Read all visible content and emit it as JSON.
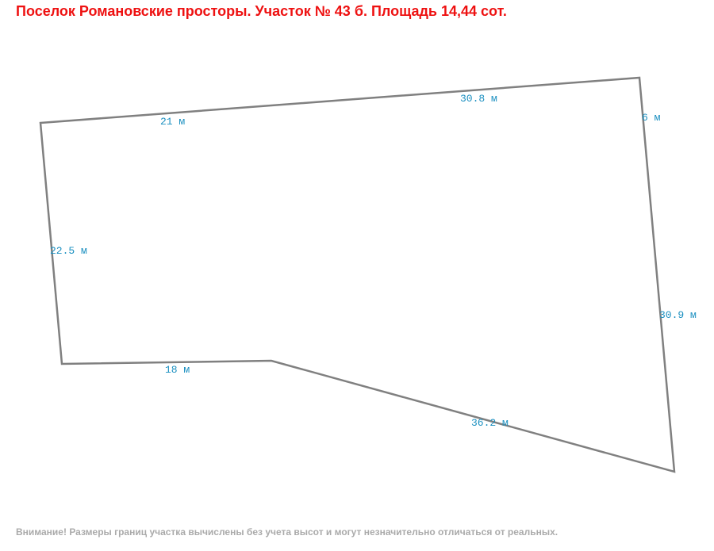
{
  "header": {
    "title": "Поселок Романовские просторы. Участок № 43 б. Площадь 14,44 сот."
  },
  "plot": {
    "edges": [
      {
        "label": "21 м"
      },
      {
        "label": "30.8 м"
      },
      {
        "label": "6 м"
      },
      {
        "label": "22.5 м"
      },
      {
        "label": "30.9 м"
      },
      {
        "label": "18 м"
      },
      {
        "label": "36.2 м"
      }
    ]
  },
  "footer": {
    "note": "Внимание! Размеры границ участка вычислены без учета высот и могут незначительно отличаться от реальных."
  }
}
